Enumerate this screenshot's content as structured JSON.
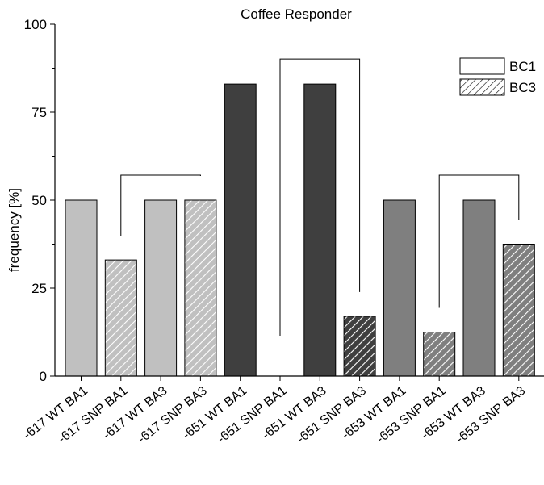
{
  "chart_data": {
    "type": "bar",
    "title": "Coffee Responder",
    "xlabel": "",
    "ylabel": "frequency [%]",
    "ylim": [
      0,
      100
    ],
    "yticks": [
      0,
      25,
      50,
      75,
      100
    ],
    "grid": false,
    "legend_position": "top-right",
    "legend": [
      {
        "label": "BC1",
        "pattern": "solid"
      },
      {
        "label": "BC3",
        "pattern": "hatched"
      }
    ],
    "categories": [
      "-617 WT BA1",
      "-617 SNP BA1",
      "-617 WT BA3",
      "-617 SNP BA3",
      "-651 WT BA1",
      "-651 SNP BA1",
      "-651 WT BA3",
      "-651 SNP BA3",
      "-653 WT BA1",
      "-653 SNP BA1",
      "-653 WT BA3",
      "-653 SNP BA3"
    ],
    "values": [
      50,
      33,
      50,
      50,
      83,
      0,
      83,
      17,
      50,
      12.5,
      50,
      37.5
    ],
    "hatched": [
      false,
      true,
      false,
      true,
      false,
      true,
      false,
      true,
      false,
      true,
      false,
      true
    ],
    "group_colors": [
      "#c0c0c0",
      "#3f3f3f",
      "#7f7f7f"
    ],
    "group_of_bar": [
      0,
      0,
      0,
      0,
      1,
      1,
      1,
      1,
      2,
      2,
      2,
      2
    ],
    "comparison_brackets": [
      {
        "from": 1,
        "to": 3
      },
      {
        "from": 5,
        "to": 7
      },
      {
        "from": 9,
        "to": 11
      }
    ]
  }
}
